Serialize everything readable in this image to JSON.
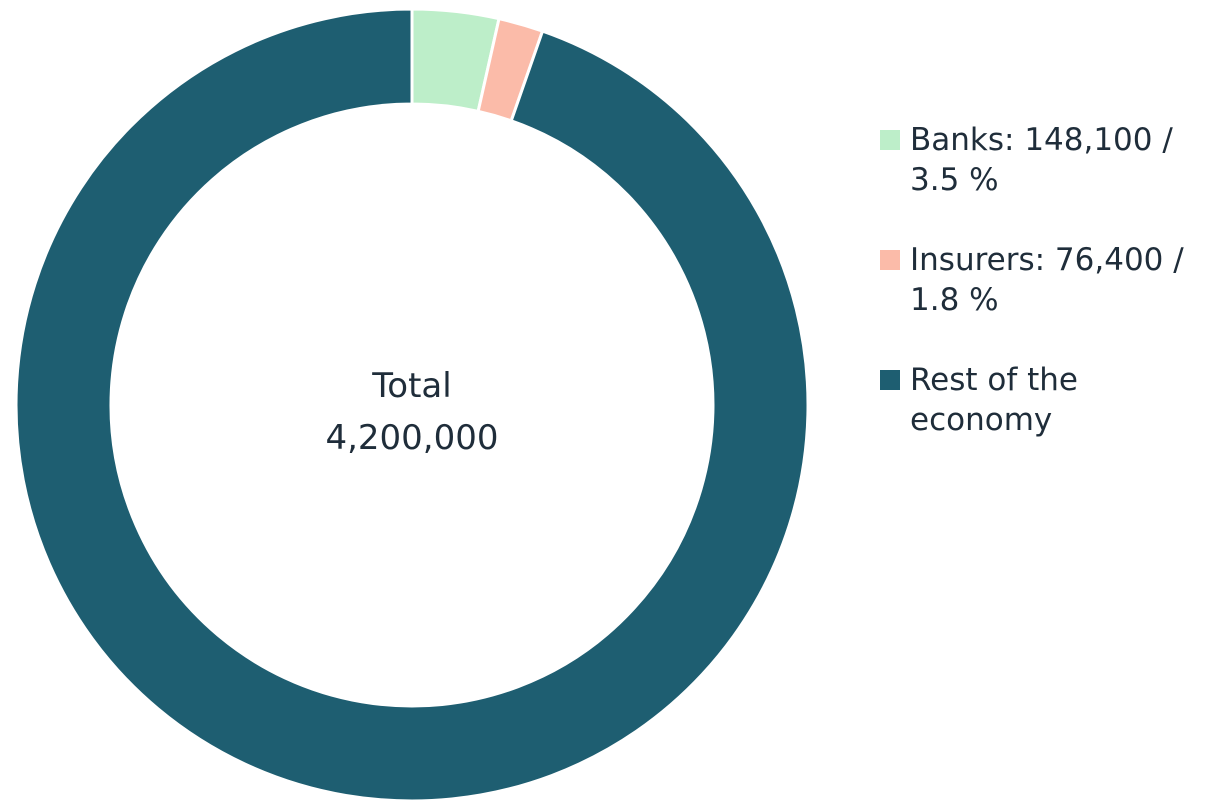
{
  "chart_data": {
    "type": "pie",
    "subtype": "donut",
    "center_title": "Total",
    "center_value": "4,200,000",
    "total": 4200000,
    "legend_position": "right",
    "series": [
      {
        "name": "Banks",
        "value": 148100,
        "legend_label": "Banks: 148,100 / 3.5 %",
        "color": "#bdeec9"
      },
      {
        "name": "Insurers",
        "value": 76400,
        "legend_label": "Insurers: 76,400 / 1.8 %",
        "color": "#fbbba9"
      },
      {
        "name": "Rest of the economy",
        "value": 3975500,
        "legend_label": "Rest of the economy",
        "color": "#1e5e71"
      }
    ]
  }
}
